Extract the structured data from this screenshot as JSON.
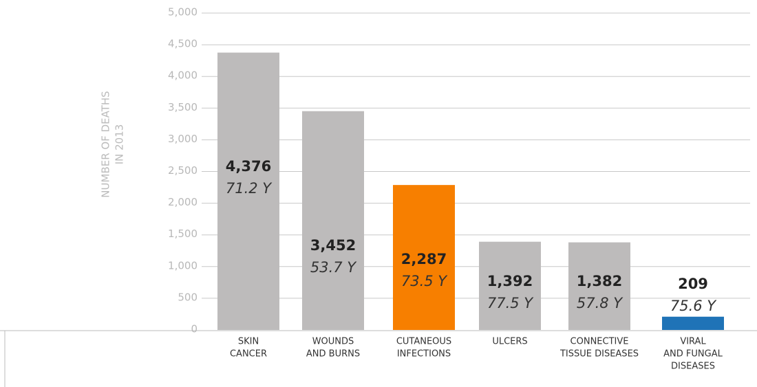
{
  "chart_data": {
    "type": "bar",
    "ylabel": [
      "NUMBER OF DEATHS",
      "IN 2013"
    ],
    "categories": [
      [
        "SKIN",
        "CANCER"
      ],
      [
        "WOUNDS",
        "AND BURNS"
      ],
      [
        "CUTANEOUS",
        "INFECTIONS"
      ],
      [
        "ULCERS"
      ],
      [
        "CONNECTIVE",
        "TISSUE DISEASES"
      ],
      [
        "VIRAL",
        "AND FUNGAL",
        "DISEASES"
      ]
    ],
    "values": [
      4376,
      3452,
      2287,
      1392,
      1382,
      209
    ],
    "value_labels": [
      "4,376",
      "3,452",
      "2,287",
      "1,392",
      "1,382",
      "209"
    ],
    "age_labels": [
      "71.2 Y",
      "53.7 Y",
      "73.5 Y",
      "77.5 Y",
      "57.8 Y",
      "75.6 Y"
    ],
    "colors": [
      "#bdbbbb",
      "#bdbbbb",
      "#f77f00",
      "#bdbbbb",
      "#bdbbbb",
      "#1f73b7"
    ],
    "ylim": [
      0,
      5000
    ],
    "yticks": [
      0,
      500,
      {
        "value": 1000,
        "label": "1,000"
      },
      {
        "value": 1500,
        "label": "1,500"
      },
      {
        "value": 2000,
        "label": "2,000"
      },
      {
        "value": 2500,
        "label": "2,500"
      },
      {
        "value": 3000,
        "label": "3,000"
      },
      {
        "value": 3500,
        "label": "3,500"
      },
      {
        "value": 4000,
        "label": "4,000"
      },
      {
        "value": 4500,
        "label": "4,500"
      },
      {
        "value": 5000,
        "label": "5,000"
      }
    ],
    "grid": true
  }
}
